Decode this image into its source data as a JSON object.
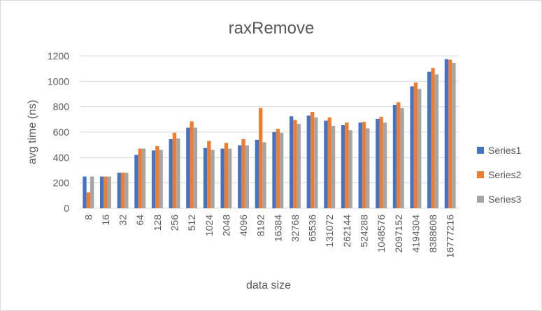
{
  "chart_data": {
    "type": "bar",
    "title": "raxRemove",
    "xlabel": "data size",
    "ylabel": "avg time (ns)",
    "ylim": [
      0,
      1200
    ],
    "yticks": [
      0,
      200,
      400,
      600,
      800,
      1000,
      1200
    ],
    "grid": true,
    "legend_position": "right",
    "categories": [
      "8",
      "16",
      "32",
      "64",
      "128",
      "256",
      "512",
      "1024",
      "2048",
      "4096",
      "8192",
      "16384",
      "32768",
      "65536",
      "131072",
      "262144",
      "524288",
      "1048576",
      "2097152",
      "4194304",
      "8388608",
      "16777216"
    ],
    "series": [
      {
        "name": "Series1",
        "color": "#4472c4",
        "values": [
          250,
          250,
          280,
          420,
          455,
          545,
          635,
          475,
          470,
          495,
          540,
          600,
          725,
          730,
          690,
          655,
          675,
          705,
          815,
          960,
          1075,
          1175
        ]
      },
      {
        "name": "Series2",
        "color": "#ed7d31",
        "values": [
          125,
          250,
          280,
          470,
          490,
          595,
          685,
          530,
          515,
          545,
          790,
          625,
          695,
          760,
          715,
          675,
          680,
          720,
          835,
          990,
          1105,
          1170
        ]
      },
      {
        "name": "Series3",
        "color": "#a5a5a5",
        "values": [
          250,
          250,
          280,
          470,
          460,
          550,
          635,
          460,
          470,
          495,
          520,
          595,
          665,
          715,
          650,
          615,
          630,
          675,
          790,
          940,
          1055,
          1145
        ]
      }
    ]
  }
}
